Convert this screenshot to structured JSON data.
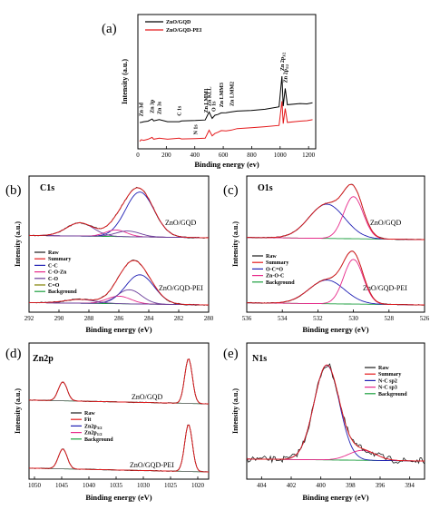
{
  "chart_data": [
    {
      "panel": "(a)",
      "type": "line",
      "xlabel": "Binding energy (ev)",
      "ylabel": "Intensity (a.u.)",
      "x_ticks": [
        0,
        200,
        400,
        600,
        800,
        1000,
        1200
      ],
      "xlim": [
        0,
        1250
      ],
      "legend": {
        "position": "top-left",
        "entries": [
          {
            "name": "ZnO/GQD",
            "color": "#000000"
          },
          {
            "name": "ZnO/GQD-PEI",
            "color": "#e41a1c"
          }
        ]
      },
      "series": [
        {
          "name": "ZnO/GQD",
          "color": "#000000",
          "x": [
            0,
            10,
            30,
            60,
            89,
            100,
            140,
            200,
            284,
            300,
            400,
            470,
            498,
            520,
            540,
            560,
            585,
            620,
            660,
            700,
            800,
            900,
            1000,
            1021,
            1030,
            1044,
            1060,
            1150,
            1200,
            1240
          ],
          "y": [
            0.14,
            0.16,
            0.16,
            0.17,
            0.22,
            0.18,
            0.2,
            0.17,
            0.17,
            0.18,
            0.19,
            0.2,
            0.35,
            0.22,
            0.28,
            0.3,
            0.33,
            0.32,
            0.35,
            0.36,
            0.38,
            0.4,
            0.43,
            1.0,
            0.46,
            0.78,
            0.48,
            0.5,
            0.5,
            0.52
          ]
        },
        {
          "name": "ZnO/GQD-PEI",
          "color": "#e41a1c",
          "x": [
            0,
            10,
            30,
            60,
            89,
            100,
            140,
            200,
            284,
            300,
            400,
            470,
            498,
            520,
            540,
            560,
            585,
            620,
            660,
            700,
            800,
            900,
            1000,
            1021,
            1030,
            1044,
            1060,
            1150,
            1200,
            1240
          ],
          "y": [
            -0.2,
            -0.17,
            -0.17,
            -0.16,
            -0.13,
            -0.16,
            -0.14,
            -0.16,
            -0.13,
            -0.15,
            -0.14,
            -0.13,
            0.0,
            -0.1,
            -0.05,
            -0.03,
            0.0,
            -0.01,
            0.02,
            0.03,
            0.05,
            0.07,
            0.1,
            0.55,
            0.13,
            0.4,
            0.15,
            0.17,
            0.18,
            0.2
          ]
        }
      ],
      "annotations": [
        {
          "text": "Zn 3d",
          "x": 10
        },
        {
          "text": "Zn 3p",
          "x": 89
        },
        {
          "text": "Zn 3s",
          "x": 140
        },
        {
          "text": "C 1s",
          "x": 284
        },
        {
          "text": "N 1s",
          "x": 400
        },
        {
          "text": "Zn LMM1",
          "x": 475
        },
        {
          "text": "Zn KLL",
          "x": 498
        },
        {
          "text": "O 1s",
          "x": 530
        },
        {
          "text": "Zn LMM3",
          "x": 585
        },
        {
          "text": "Zn LMM2",
          "x": 660
        },
        {
          "text": "Zn 2p",
          "sub": "3/2",
          "x": 1021
        },
        {
          "text": "Zn 2p",
          "sub": "1/2",
          "x": 1044
        }
      ]
    },
    {
      "panel": "(b)",
      "type": "line",
      "title": "C1s",
      "xlabel": "Binding energy (eV)",
      "ylabel": "Intensity (a.u.)",
      "x_ticks": [
        292,
        290,
        288,
        286,
        284,
        282,
        280
      ],
      "xlim": [
        292,
        280
      ],
      "reversed_x": true,
      "sample_labels": [
        "ZnO/GQD",
        "ZnO/GQD-PEI"
      ],
      "legend": {
        "position": "bottom-left",
        "entries": [
          {
            "name": "Raw",
            "color": "#1a1a1a"
          },
          {
            "name": "Summary",
            "color": "#e41a1c"
          },
          {
            "name": "C-C",
            "color": "#1f1fb4"
          },
          {
            "name": "C-O-Zn",
            "color": "#e7298a"
          },
          {
            "name": "C-O",
            "color": "#6a3d9a"
          },
          {
            "name": "C=O",
            "color": "#808000"
          },
          {
            "name": "Background",
            "color": "#1b9e3e"
          }
        ]
      },
      "components": {
        "top": [
          {
            "name": "C-C",
            "center": 284.6,
            "width": 0.95,
            "height": 0.95
          },
          {
            "name": "C-O-Zn",
            "center": 286.2,
            "width": 0.7,
            "height": 0.14
          },
          {
            "name": "C-O",
            "center": 285.4,
            "width": 0.8,
            "height": 0.12
          },
          {
            "name": "C=O",
            "center": 288.6,
            "width": 0.9,
            "height": 0.28
          }
        ],
        "bottom": [
          {
            "name": "C-C",
            "center": 284.6,
            "width": 0.95,
            "height": 0.62
          },
          {
            "name": "C-O-Zn",
            "center": 286.0,
            "width": 0.8,
            "height": 0.16
          },
          {
            "name": "C-O",
            "center": 285.3,
            "width": 0.8,
            "height": 0.3
          },
          {
            "name": "C=O",
            "center": 288.6,
            "width": 1.0,
            "height": 0.08
          }
        ]
      }
    },
    {
      "panel": "(c)",
      "type": "line",
      "title": "O1s",
      "xlabel": "Binding energy (eV)",
      "ylabel": "Intensity (a.u.)",
      "x_ticks": [
        536,
        534,
        532,
        530,
        528,
        526
      ],
      "xlim": [
        536,
        526
      ],
      "reversed_x": true,
      "sample_labels": [
        "ZnO/GQD",
        "ZnO/GQD-PEI"
      ],
      "legend": {
        "position": "bottom-left",
        "entries": [
          {
            "name": "Raw",
            "color": "#1a1a1a"
          },
          {
            "name": "Summary",
            "color": "#e41a1c"
          },
          {
            "name": "O-C=O",
            "color": "#1f1fb4"
          },
          {
            "name": "Zn-O-C",
            "color": "#e7298a"
          },
          {
            "name": "Background",
            "color": "#1b9e3e"
          }
        ]
      },
      "components": {
        "top": [
          {
            "name": "O-C=O",
            "center": 531.5,
            "width": 1.0,
            "height": 0.65
          },
          {
            "name": "Zn-O-C",
            "center": 530.0,
            "width": 0.55,
            "height": 0.8
          }
        ],
        "bottom": [
          {
            "name": "O-C=O",
            "center": 531.5,
            "width": 1.0,
            "height": 0.45
          },
          {
            "name": "Zn-O-C",
            "center": 530.0,
            "width": 0.55,
            "height": 0.85
          }
        ]
      }
    },
    {
      "panel": "(d)",
      "type": "line",
      "title": "Zn2p",
      "xlabel": "Binding energy (eV)",
      "ylabel": "Intensity (a.u.)",
      "x_ticks": [
        1050,
        1045,
        1040,
        1035,
        1030,
        1025,
        1020
      ],
      "xlim": [
        1051,
        1018
      ],
      "reversed_x": true,
      "sample_labels": [
        "ZnO/GQD",
        "ZnO/GQD-PEI"
      ],
      "legend": {
        "position": "center-left",
        "entries": [
          {
            "name": "Raw",
            "color": "#1a1a1a"
          },
          {
            "name": "Fit",
            "color": "#e41a1c"
          },
          {
            "name": "Zn2p",
            "sub": "3/2",
            "color": "#1f1fb4"
          },
          {
            "name": "Zn2p",
            "sub": "1/2",
            "color": "#e7298a"
          },
          {
            "name": "Background",
            "color": "#1b9e3e"
          }
        ]
      },
      "components": {
        "top": [
          {
            "name": "Zn2p 3/2",
            "center": 1021.7,
            "width": 0.7,
            "height": 0.95
          },
          {
            "name": "Zn2p 1/2",
            "center": 1044.8,
            "width": 0.8,
            "height": 0.4
          }
        ],
        "bottom": [
          {
            "name": "Zn2p 3/2",
            "center": 1021.7,
            "width": 0.7,
            "height": 1.0
          },
          {
            "name": "Zn2p 1/2",
            "center": 1044.8,
            "width": 0.8,
            "height": 0.42
          }
        ]
      }
    },
    {
      "panel": "(e)",
      "type": "line",
      "title": "N1s",
      "xlabel": "Binding energy (eV)",
      "ylabel": "Intensity (a.u.)",
      "x_ticks": [
        404,
        402,
        400,
        398,
        396,
        394
      ],
      "xlim": [
        405,
        393
      ],
      "reversed_x": true,
      "legend": {
        "position": "top-right",
        "entries": [
          {
            "name": "Raw",
            "color": "#1a1a1a"
          },
          {
            "name": "Summary",
            "color": "#e41a1c"
          },
          {
            "name": "N-C sp2",
            "color": "#1f1fb4"
          },
          {
            "name": "N-C sp3",
            "color": "#e7298a"
          },
          {
            "name": "Background",
            "color": "#1b9e3e"
          }
        ]
      },
      "components": [
        {
          "name": "N-C sp2",
          "center": 399.6,
          "width": 0.85,
          "height": 0.95
        },
        {
          "name": "N-C sp3",
          "center": 397.2,
          "width": 0.9,
          "height": 0.1
        }
      ]
    }
  ]
}
